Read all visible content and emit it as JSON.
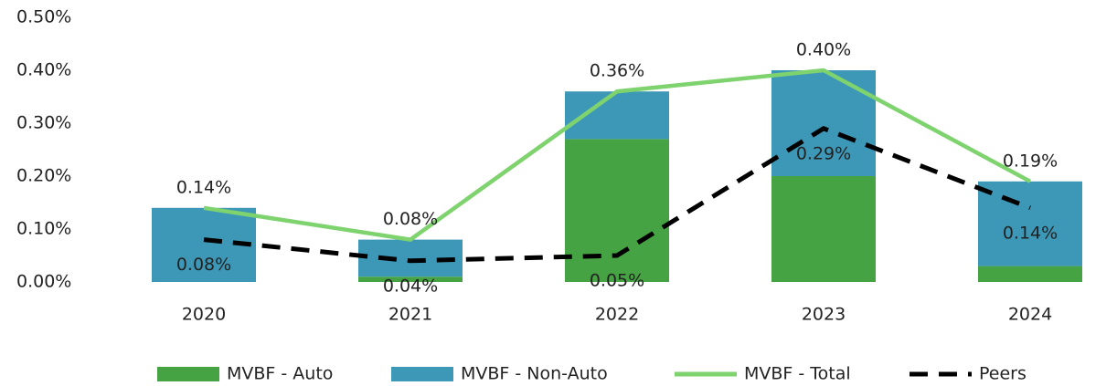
{
  "chart_data": {
    "type": "bar-line",
    "categories": [
      "2020",
      "2021",
      "2022",
      "2023",
      "2024"
    ],
    "series": [
      {
        "name": "MVBF - Auto",
        "type": "bar",
        "color": "#46a343",
        "values": [
          0,
          0.01,
          0.27,
          0.2,
          0.03
        ]
      },
      {
        "name": "MVBF - Non-Auto",
        "type": "bar",
        "color": "#3d97b6",
        "values": [
          0.14,
          0.07,
          0.09,
          0.2,
          0.16
        ]
      },
      {
        "name": "MVBF - Total",
        "type": "line",
        "color": "#7ed36e",
        "values": [
          0.14,
          0.08,
          0.36,
          0.4,
          0.19
        ],
        "value_labels": [
          "0.14%",
          "0.08%",
          "0.36%",
          "0.40%",
          "0.19%"
        ]
      },
      {
        "name": "Peers",
        "type": "line",
        "dashed": true,
        "color": "#000000",
        "values": [
          0.08,
          0.04,
          0.05,
          0.29,
          0.14
        ],
        "value_labels": [
          "0.08%",
          "0.04%",
          "0.05%",
          "0.29%",
          "0.14%"
        ]
      }
    ],
    "ylim": [
      0,
      0.5
    ],
    "yticks": [
      {
        "value": 0,
        "label": "0.00%"
      },
      {
        "value": 0.1,
        "label": "0.10%"
      },
      {
        "value": 0.2,
        "label": "0.20%"
      },
      {
        "value": 0.3,
        "label": "0.30%"
      },
      {
        "value": 0.4,
        "label": "0.40%"
      },
      {
        "value": 0.5,
        "label": "0.50%"
      }
    ],
    "legend": "bottom"
  }
}
